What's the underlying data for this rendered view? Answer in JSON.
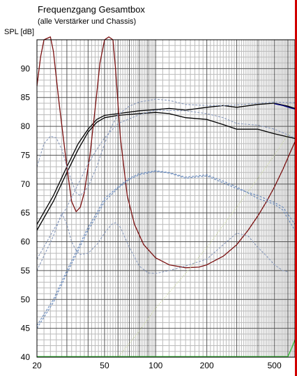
{
  "chart_data": {
    "type": "line",
    "title": "Frequenzgang Gesamtbox",
    "subtitle": "(alle Verstärker und Chassis)",
    "ylabel": "SPL [dB]",
    "xscale": "log",
    "xlim": [
      20,
      660
    ],
    "ylim": [
      40,
      95
    ],
    "grid": true,
    "x_ticks": [
      20,
      50,
      100,
      200,
      500
    ],
    "y_ticks": [
      40,
      45,
      50,
      55,
      60,
      65,
      70,
      75,
      80,
      85,
      90
    ],
    "colors": {
      "total": "#000000",
      "impedance": "#7a1010",
      "driver_dashed": "#8899bb",
      "driver_blue": "#6688bb",
      "lowpass_dotted": "#c8d890",
      "green": "#33bb33",
      "grid_major": "#555555",
      "grid_minor": "#bbbbbb"
    },
    "series": [
      {
        "style": "solid",
        "color": "#000000",
        "points": [
          [
            20,
            62
          ],
          [
            25,
            67
          ],
          [
            30,
            72
          ],
          [
            35,
            76
          ],
          [
            40,
            79
          ],
          [
            45,
            80.7
          ],
          [
            50,
            81.5
          ],
          [
            60,
            81.9
          ],
          [
            80,
            82.2
          ],
          [
            100,
            82.4
          ],
          [
            120,
            82.2
          ],
          [
            150,
            81.5
          ],
          [
            200,
            81.2
          ],
          [
            250,
            80.3
          ],
          [
            300,
            79.5
          ],
          [
            400,
            79.5
          ],
          [
            500,
            78.7
          ],
          [
            660,
            77.9
          ]
        ]
      },
      {
        "style": "solid",
        "color": "#000000",
        "points": [
          [
            20,
            63
          ],
          [
            25,
            68
          ],
          [
            30,
            73
          ],
          [
            35,
            77
          ],
          [
            40,
            79.5
          ],
          [
            45,
            81.2
          ],
          [
            50,
            81.9
          ],
          [
            60,
            82.2
          ],
          [
            80,
            82.7
          ],
          [
            100,
            82.9
          ],
          [
            120,
            83.1
          ],
          [
            150,
            82.8
          ],
          [
            200,
            83.3
          ],
          [
            250,
            83.6
          ],
          [
            300,
            83.3
          ],
          [
            400,
            83.8
          ],
          [
            500,
            84.0
          ],
          [
            600,
            83.5
          ],
          [
            660,
            83.1
          ]
        ]
      },
      {
        "style": "solid",
        "color": "#000080",
        "points": [
          [
            500,
            83.9
          ],
          [
            560,
            83.6
          ],
          [
            620,
            83.2
          ],
          [
            660,
            83.0
          ]
        ]
      },
      {
        "style": "solid",
        "color": "#7a1010",
        "points": [
          [
            20,
            87
          ],
          [
            21,
            92
          ],
          [
            22,
            95
          ],
          [
            24,
            95.5
          ],
          [
            25,
            93
          ],
          [
            27,
            84
          ],
          [
            30,
            73
          ],
          [
            32,
            67
          ],
          [
            34,
            65.2
          ],
          [
            36,
            66
          ],
          [
            38,
            68.5
          ],
          [
            41,
            75
          ],
          [
            44,
            83
          ],
          [
            47,
            91
          ],
          [
            50,
            95
          ],
          [
            53,
            95.5
          ],
          [
            56,
            95
          ],
          [
            58,
            90
          ],
          [
            62,
            78
          ],
          [
            68,
            68
          ],
          [
            75,
            63
          ],
          [
            85,
            59.5
          ],
          [
            100,
            57.2
          ],
          [
            120,
            56
          ],
          [
            150,
            55.5
          ],
          [
            180,
            55.6
          ],
          [
            200,
            56
          ],
          [
            250,
            57.5
          ],
          [
            300,
            59.5
          ],
          [
            350,
            62
          ],
          [
            400,
            64.5
          ],
          [
            450,
            67
          ],
          [
            500,
            69.5
          ],
          [
            560,
            72.5
          ],
          [
            620,
            75.5
          ],
          [
            660,
            77.3
          ]
        ]
      },
      {
        "style": "dashed",
        "color": "#8899bb",
        "points": [
          [
            20,
            73
          ],
          [
            22,
            77
          ],
          [
            24,
            78.3
          ],
          [
            26,
            78
          ],
          [
            28,
            76
          ],
          [
            30,
            73
          ],
          [
            32,
            70.5
          ],
          [
            34,
            68.5
          ],
          [
            36,
            68
          ],
          [
            40,
            69.5
          ],
          [
            45,
            73
          ],
          [
            50,
            77
          ],
          [
            55,
            80
          ],
          [
            60,
            82
          ],
          [
            70,
            83.5
          ],
          [
            80,
            84.2
          ],
          [
            100,
            84.7
          ],
          [
            120,
            84.5
          ],
          [
            150,
            83.8
          ],
          [
            200,
            83.6
          ],
          [
            250,
            83.6
          ],
          [
            300,
            83.7
          ],
          [
            400,
            84
          ],
          [
            500,
            84.2
          ],
          [
            660,
            84.1
          ]
        ]
      },
      {
        "style": "dashed",
        "color": "#8899bb",
        "points": [
          [
            20,
            57
          ],
          [
            25,
            62
          ],
          [
            30,
            66
          ],
          [
            35,
            70
          ],
          [
            40,
            73.5
          ],
          [
            45,
            76
          ],
          [
            50,
            78
          ],
          [
            60,
            80.5
          ],
          [
            80,
            82
          ],
          [
            100,
            82.8
          ],
          [
            150,
            82.7
          ],
          [
            200,
            82.2
          ],
          [
            250,
            81.5
          ],
          [
            300,
            80.5
          ],
          [
            400,
            80.2
          ],
          [
            500,
            79.5
          ],
          [
            660,
            78
          ]
        ]
      },
      {
        "style": "dashed",
        "color": "#8899bb",
        "points": [
          [
            20,
            55
          ],
          [
            25,
            61
          ],
          [
            28,
            65
          ],
          [
            30,
            63
          ],
          [
            32,
            60
          ],
          [
            34,
            58.5
          ],
          [
            36,
            57.8
          ],
          [
            40,
            58
          ],
          [
            45,
            59.5
          ],
          [
            50,
            61.5
          ],
          [
            55,
            63
          ],
          [
            58,
            63.3
          ],
          [
            62,
            62.5
          ],
          [
            70,
            59
          ],
          [
            80,
            55.8
          ],
          [
            90,
            54.6
          ],
          [
            100,
            54.5
          ],
          [
            120,
            55
          ],
          [
            150,
            55.8
          ],
          [
            200,
            57
          ],
          [
            250,
            59.5
          ],
          [
            300,
            61.5
          ],
          [
            350,
            61
          ],
          [
            400,
            59
          ],
          [
            450,
            57.5
          ],
          [
            500,
            56
          ],
          [
            560,
            55
          ],
          [
            600,
            54.8
          ]
        ]
      },
      {
        "style": "dashed",
        "color": "#6688bb",
        "points": [
          [
            20,
            45.5
          ],
          [
            25,
            50
          ],
          [
            30,
            55
          ],
          [
            35,
            59
          ],
          [
            40,
            62.5
          ],
          [
            45,
            65
          ],
          [
            50,
            67.5
          ],
          [
            60,
            69.5
          ],
          [
            70,
            71
          ],
          [
            80,
            71.8
          ],
          [
            100,
            72.3
          ],
          [
            120,
            72
          ],
          [
            150,
            71.2
          ],
          [
            200,
            71.6
          ],
          [
            250,
            70.5
          ],
          [
            300,
            69.5
          ],
          [
            400,
            67.5
          ],
          [
            500,
            66.5
          ],
          [
            560,
            65.5
          ],
          [
            600,
            64
          ],
          [
            660,
            62
          ]
        ]
      },
      {
        "style": "dashed",
        "color": "#6688bb",
        "points": [
          [
            20,
            45
          ],
          [
            25,
            49.5
          ],
          [
            30,
            54.5
          ],
          [
            35,
            58.5
          ],
          [
            40,
            62
          ],
          [
            45,
            64.5
          ],
          [
            50,
            67
          ],
          [
            60,
            69.3
          ],
          [
            70,
            70.8
          ],
          [
            80,
            71.6
          ],
          [
            100,
            72.2
          ],
          [
            120,
            71.9
          ],
          [
            150,
            71
          ],
          [
            200,
            71.4
          ],
          [
            250,
            70.2
          ],
          [
            300,
            69.2
          ],
          [
            400,
            68
          ],
          [
            500,
            66.8
          ],
          [
            560,
            66
          ],
          [
            600,
            64.8
          ],
          [
            660,
            63
          ]
        ]
      },
      {
        "style": "dotted",
        "color": "#c8d890",
        "points": [
          [
            60,
            40
          ],
          [
            80,
            44.5
          ],
          [
            100,
            48.5
          ],
          [
            150,
            54.5
          ],
          [
            200,
            59
          ],
          [
            300,
            66
          ],
          [
            400,
            71
          ],
          [
            500,
            75
          ],
          [
            600,
            78.5
          ],
          [
            660,
            80
          ]
        ]
      },
      {
        "style": "solid",
        "color": "#33bb33",
        "points": [
          [
            20,
            40.1
          ],
          [
            600,
            40.1
          ],
          [
            630,
            41.5
          ],
          [
            660,
            43
          ]
        ]
      }
    ]
  }
}
